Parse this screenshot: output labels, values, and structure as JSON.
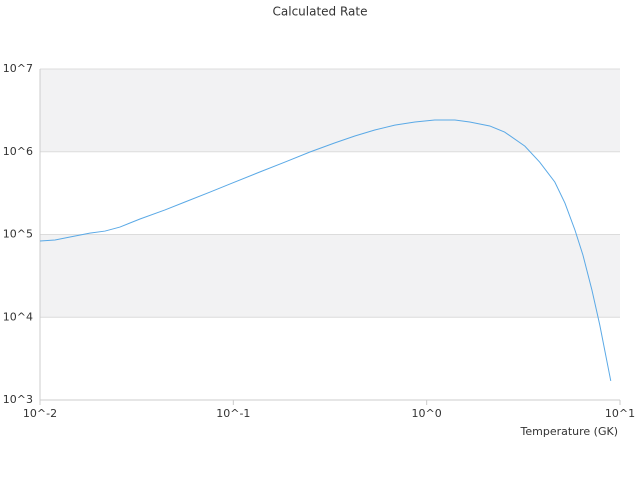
{
  "chart_data": {
    "type": "line",
    "title": "Calculated Rate",
    "x_label": "Temperature (GK)",
    "x": [
      0.01,
      0.01196,
      0.0143,
      0.0181,
      0.0217,
      0.0259,
      0.0329,
      0.0443,
      0.0562,
      0.0758,
      0.0962,
      0.137,
      0.185,
      0.249,
      0.335,
      0.425,
      0.539,
      0.684,
      0.87,
      1.1,
      1.4,
      1.67,
      2.12,
      2.53,
      3.22,
      3.84,
      4.6,
      5.19,
      5.85,
      6.43,
      7.16,
      7.86,
      8.96
    ],
    "values": [
      83400,
      85900,
      93300,
      104000,
      110000,
      123000,
      154000,
      198000,
      247000,
      326000,
      408000,
      569000,
      751000,
      993000,
      1280000,
      1550000,
      1830000,
      2100000,
      2290000,
      2420000,
      2420000,
      2290000,
      2050000,
      1730000,
      1170000,
      751000,
      431000,
      240000,
      113000,
      56500,
      21300,
      8060,
      1700
    ],
    "color": "#5aa9e6",
    "band_color": "#f2f2f3",
    "xlog": true,
    "ylog": true,
    "xlim": [
      0.01,
      10
    ],
    "ylim": [
      1000,
      10000000
    ],
    "xticks": [
      {
        "value": 0.01,
        "label": "10^-2"
      },
      {
        "value": 0.1,
        "label": "10^-1"
      },
      {
        "value": 1,
        "label": "10^0"
      },
      {
        "value": 10,
        "label": "10^1"
      }
    ],
    "yticks": [
      {
        "value": 1000,
        "label": "10^3"
      },
      {
        "value": 10000,
        "label": "10^4"
      },
      {
        "value": 100000,
        "label": "10^5"
      },
      {
        "value": 1000000,
        "label": "10^6"
      },
      {
        "value": 10000000,
        "label": "10^7"
      }
    ]
  }
}
